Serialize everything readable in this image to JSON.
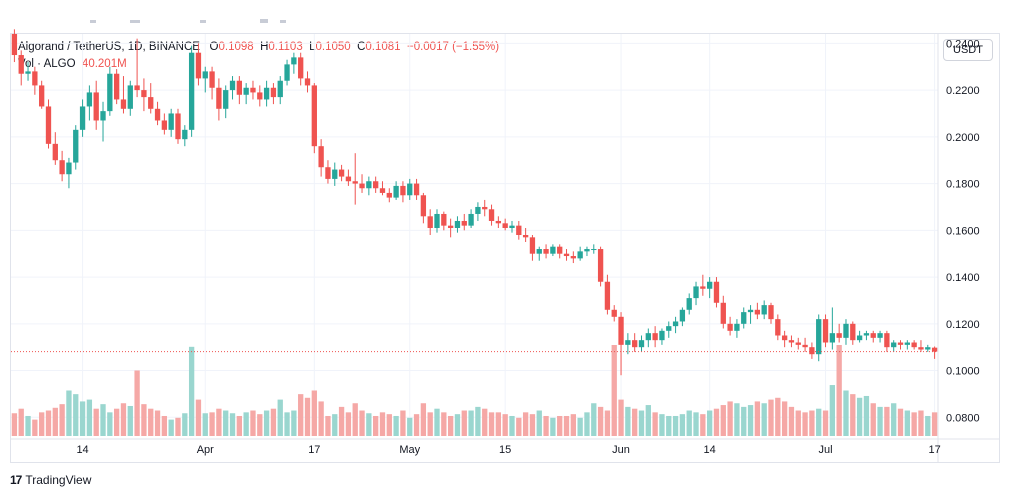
{
  "header": {
    "symbol": "Algorand / TetherUS, 1D, BINANCE",
    "o_label": "O",
    "o_value": "0.1098",
    "h_label": "H",
    "h_value": "0.1103",
    "l_label": "L",
    "l_value": "0.1050",
    "c_label": "C",
    "c_value": "0.1081",
    "change": "−0.0017 (−1.55%)"
  },
  "volume": {
    "label": "Vol · ALGO",
    "value": "40.201M"
  },
  "currency_button": "USDT",
  "brand": {
    "logo": "17",
    "name": "TradingView"
  },
  "colors": {
    "up": "#26a69a",
    "down": "#ef5350",
    "up_vol": "#9ad6cf",
    "down_vol": "#f5a8a6",
    "grid": "#f0f3fa",
    "price_line": "#ef5350"
  },
  "chart_data": {
    "type": "candlestick",
    "y_ticks": [
      "0.2400",
      "0.2200",
      "0.2000",
      "0.1800",
      "0.1600",
      "0.1400",
      "0.1200",
      "0.1000",
      "0.0800"
    ],
    "x_ticks": [
      {
        "label": "14",
        "index": 10
      },
      {
        "label": "Apr",
        "index": 28
      },
      {
        "label": "17",
        "index": 44
      },
      {
        "label": "May",
        "index": 58
      },
      {
        "label": "15",
        "index": 72
      },
      {
        "label": "Jun",
        "index": 89
      },
      {
        "label": "14",
        "index": 102
      },
      {
        "label": "Jul",
        "index": 119
      },
      {
        "label": "17",
        "index": 135
      }
    ],
    "ylim": [
      0.072,
      0.244
    ],
    "last_close": 0.1081,
    "candles": [
      [
        0.244,
        0.246,
        0.232,
        0.235
      ],
      [
        0.235,
        0.237,
        0.222,
        0.227
      ],
      [
        0.227,
        0.232,
        0.224,
        0.228
      ],
      [
        0.228,
        0.23,
        0.218,
        0.222
      ],
      [
        0.222,
        0.224,
        0.212,
        0.213
      ],
      [
        0.213,
        0.216,
        0.195,
        0.197
      ],
      [
        0.197,
        0.202,
        0.188,
        0.19
      ],
      [
        0.19,
        0.194,
        0.181,
        0.184
      ],
      [
        0.184,
        0.191,
        0.178,
        0.189
      ],
      [
        0.189,
        0.205,
        0.186,
        0.203
      ],
      [
        0.203,
        0.216,
        0.2,
        0.213
      ],
      [
        0.213,
        0.222,
        0.207,
        0.219
      ],
      [
        0.219,
        0.224,
        0.203,
        0.207
      ],
      [
        0.207,
        0.215,
        0.198,
        0.211
      ],
      [
        0.211,
        0.23,
        0.209,
        0.227
      ],
      [
        0.227,
        0.229,
        0.214,
        0.216
      ],
      [
        0.216,
        0.226,
        0.21,
        0.212
      ],
      [
        0.212,
        0.224,
        0.209,
        0.222
      ],
      [
        0.222,
        0.242,
        0.217,
        0.22
      ],
      [
        0.22,
        0.225,
        0.211,
        0.217
      ],
      [
        0.217,
        0.223,
        0.21,
        0.212
      ],
      [
        0.212,
        0.215,
        0.205,
        0.207
      ],
      [
        0.207,
        0.21,
        0.201,
        0.203
      ],
      [
        0.203,
        0.212,
        0.2,
        0.21
      ],
      [
        0.21,
        0.212,
        0.197,
        0.199
      ],
      [
        0.199,
        0.205,
        0.196,
        0.203
      ],
      [
        0.203,
        0.239,
        0.2,
        0.236
      ],
      [
        0.236,
        0.24,
        0.222,
        0.225
      ],
      [
        0.225,
        0.23,
        0.219,
        0.228
      ],
      [
        0.228,
        0.23,
        0.216,
        0.221
      ],
      [
        0.221,
        0.225,
        0.207,
        0.212
      ],
      [
        0.212,
        0.222,
        0.208,
        0.22
      ],
      [
        0.22,
        0.226,
        0.216,
        0.224
      ],
      [
        0.224,
        0.226,
        0.214,
        0.218
      ],
      [
        0.218,
        0.223,
        0.214,
        0.221
      ],
      [
        0.221,
        0.224,
        0.216,
        0.219
      ],
      [
        0.219,
        0.222,
        0.213,
        0.216
      ],
      [
        0.216,
        0.224,
        0.213,
        0.221
      ],
      [
        0.221,
        0.223,
        0.214,
        0.217
      ],
      [
        0.217,
        0.226,
        0.214,
        0.224
      ],
      [
        0.224,
        0.233,
        0.222,
        0.231
      ],
      [
        0.231,
        0.236,
        0.227,
        0.234
      ],
      [
        0.234,
        0.236,
        0.222,
        0.225
      ],
      [
        0.225,
        0.228,
        0.219,
        0.222
      ],
      [
        0.222,
        0.223,
        0.193,
        0.196
      ],
      [
        0.196,
        0.199,
        0.183,
        0.187
      ],
      [
        0.187,
        0.19,
        0.18,
        0.182
      ],
      [
        0.182,
        0.189,
        0.179,
        0.186
      ],
      [
        0.186,
        0.188,
        0.181,
        0.183
      ],
      [
        0.183,
        0.186,
        0.179,
        0.181
      ],
      [
        0.181,
        0.193,
        0.171,
        0.18
      ],
      [
        0.18,
        0.184,
        0.176,
        0.178
      ],
      [
        0.178,
        0.183,
        0.175,
        0.181
      ],
      [
        0.181,
        0.183,
        0.176,
        0.178
      ],
      [
        0.178,
        0.181,
        0.175,
        0.176
      ],
      [
        0.176,
        0.178,
        0.172,
        0.174
      ],
      [
        0.174,
        0.181,
        0.173,
        0.179
      ],
      [
        0.179,
        0.181,
        0.172,
        0.175
      ],
      [
        0.175,
        0.182,
        0.173,
        0.18
      ],
      [
        0.18,
        0.182,
        0.173,
        0.175
      ],
      [
        0.175,
        0.176,
        0.163,
        0.166
      ],
      [
        0.166,
        0.169,
        0.158,
        0.161
      ],
      [
        0.161,
        0.169,
        0.159,
        0.167
      ],
      [
        0.167,
        0.168,
        0.16,
        0.162
      ],
      [
        0.162,
        0.165,
        0.157,
        0.161
      ],
      [
        0.161,
        0.166,
        0.159,
        0.164
      ],
      [
        0.164,
        0.167,
        0.16,
        0.162
      ],
      [
        0.162,
        0.169,
        0.161,
        0.167
      ],
      [
        0.167,
        0.172,
        0.164,
        0.17
      ],
      [
        0.17,
        0.173,
        0.166,
        0.169
      ],
      [
        0.169,
        0.171,
        0.162,
        0.164
      ],
      [
        0.164,
        0.166,
        0.161,
        0.163
      ],
      [
        0.163,
        0.165,
        0.16,
        0.161
      ],
      [
        0.161,
        0.164,
        0.159,
        0.162
      ],
      [
        0.162,
        0.164,
        0.156,
        0.158
      ],
      [
        0.158,
        0.161,
        0.155,
        0.157
      ],
      [
        0.157,
        0.158,
        0.147,
        0.15
      ],
      [
        0.15,
        0.153,
        0.147,
        0.152
      ],
      [
        0.152,
        0.154,
        0.148,
        0.15
      ],
      [
        0.15,
        0.154,
        0.149,
        0.153
      ],
      [
        0.153,
        0.154,
        0.148,
        0.15
      ],
      [
        0.15,
        0.152,
        0.147,
        0.149
      ],
      [
        0.149,
        0.151,
        0.146,
        0.148
      ],
      [
        0.148,
        0.153,
        0.147,
        0.151
      ],
      [
        0.151,
        0.153,
        0.149,
        0.152
      ],
      [
        0.152,
        0.154,
        0.15,
        0.152
      ],
      [
        0.152,
        0.153,
        0.136,
        0.138
      ],
      [
        0.138,
        0.141,
        0.124,
        0.126
      ],
      [
        0.126,
        0.128,
        0.121,
        0.123
      ],
      [
        0.123,
        0.125,
        0.098,
        0.111
      ],
      [
        0.111,
        0.116,
        0.107,
        0.113
      ],
      [
        0.113,
        0.116,
        0.108,
        0.11
      ],
      [
        0.11,
        0.115,
        0.108,
        0.113
      ],
      [
        0.113,
        0.118,
        0.11,
        0.116
      ],
      [
        0.116,
        0.119,
        0.11,
        0.113
      ],
      [
        0.113,
        0.118,
        0.111,
        0.117
      ],
      [
        0.117,
        0.121,
        0.114,
        0.119
      ],
      [
        0.119,
        0.123,
        0.116,
        0.121
      ],
      [
        0.121,
        0.127,
        0.119,
        0.126
      ],
      [
        0.126,
        0.133,
        0.124,
        0.131
      ],
      [
        0.131,
        0.138,
        0.128,
        0.136
      ],
      [
        0.136,
        0.141,
        0.132,
        0.135
      ],
      [
        0.135,
        0.14,
        0.131,
        0.138
      ],
      [
        0.138,
        0.14,
        0.127,
        0.129
      ],
      [
        0.129,
        0.132,
        0.118,
        0.12
      ],
      [
        0.12,
        0.123,
        0.115,
        0.117
      ],
      [
        0.117,
        0.122,
        0.114,
        0.12
      ],
      [
        0.12,
        0.127,
        0.118,
        0.125
      ],
      [
        0.125,
        0.128,
        0.12,
        0.126
      ],
      [
        0.126,
        0.129,
        0.122,
        0.124
      ],
      [
        0.124,
        0.13,
        0.122,
        0.128
      ],
      [
        0.128,
        0.129,
        0.12,
        0.122
      ],
      [
        0.122,
        0.124,
        0.113,
        0.115
      ],
      [
        0.115,
        0.117,
        0.11,
        0.113
      ],
      [
        0.113,
        0.115,
        0.11,
        0.112
      ],
      [
        0.112,
        0.114,
        0.109,
        0.111
      ],
      [
        0.111,
        0.114,
        0.108,
        0.11
      ],
      [
        0.11,
        0.112,
        0.105,
        0.107
      ],
      [
        0.107,
        0.124,
        0.104,
        0.122
      ],
      [
        0.122,
        0.124,
        0.11,
        0.112
      ],
      [
        0.112,
        0.127,
        0.109,
        0.116
      ],
      [
        0.116,
        0.12,
        0.112,
        0.114
      ],
      [
        0.114,
        0.122,
        0.111,
        0.12
      ],
      [
        0.12,
        0.121,
        0.111,
        0.113
      ],
      [
        0.113,
        0.117,
        0.112,
        0.115
      ],
      [
        0.115,
        0.117,
        0.113,
        0.116
      ],
      [
        0.116,
        0.117,
        0.112,
        0.114
      ],
      [
        0.114,
        0.117,
        0.112,
        0.116
      ],
      [
        0.116,
        0.117,
        0.108,
        0.11
      ],
      [
        0.11,
        0.113,
        0.108,
        0.112
      ],
      [
        0.112,
        0.113,
        0.109,
        0.111
      ],
      [
        0.111,
        0.113,
        0.109,
        0.112
      ],
      [
        0.112,
        0.113,
        0.109,
        0.11
      ],
      [
        0.11,
        0.113,
        0.108,
        0.109
      ],
      [
        0.109,
        0.111,
        0.108,
        0.11
      ],
      [
        0.1098,
        0.1103,
        0.105,
        0.1081
      ]
    ],
    "volume_scale_max": 100,
    "volumes": [
      25,
      30,
      22,
      18,
      26,
      28,
      31,
      35,
      50,
      46,
      38,
      40,
      30,
      35,
      26,
      30,
      36,
      33,
      72,
      35,
      30,
      28,
      22,
      18,
      20,
      25,
      98,
      40,
      25,
      26,
      30,
      28,
      25,
      22,
      26,
      28,
      24,
      28,
      30,
      40,
      26,
      28,
      46,
      42,
      50,
      38,
      22,
      24,
      32,
      26,
      36,
      28,
      25,
      22,
      26,
      24,
      22,
      28,
      20,
      24,
      36,
      26,
      30,
      26,
      22,
      24,
      28,
      28,
      32,
      30,
      26,
      26,
      24,
      22,
      20,
      26,
      24,
      28,
      22,
      20,
      22,
      22,
      24,
      20,
      26,
      36,
      32,
      28,
      100,
      40,
      32,
      30,
      28,
      34,
      26,
      24,
      22,
      22,
      24,
      28,
      26,
      24,
      28,
      30,
      34,
      38,
      36,
      32,
      34,
      38,
      36,
      40,
      42,
      38,
      32,
      28,
      26,
      28,
      30,
      28,
      56,
      100,
      50,
      46,
      42,
      44,
      36,
      32,
      32,
      36,
      30,
      28,
      26,
      28,
      22,
      26,
      28,
      30,
      40
    ]
  }
}
